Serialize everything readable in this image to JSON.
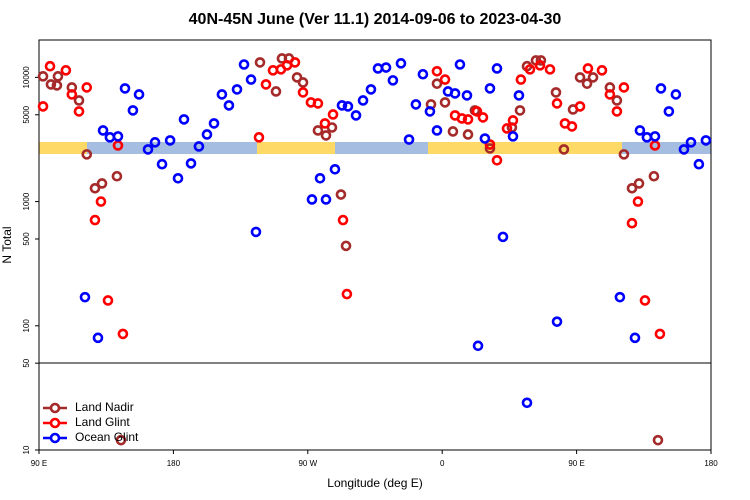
{
  "chart_data": {
    "type": "scatter",
    "title": "40N-45N June (Ver 11.1)   2014-09-06 to 2023-04-30",
    "x_label": "Longitude (deg E)",
    "y_label": "N Total",
    "xlim": [
      90,
      540
    ],
    "xticks": [
      {
        "value": 90,
        "label": "90 E"
      },
      180,
      {
        "value": 270,
        "label": "90 W"
      },
      {
        "value": 360,
        "label": "0"
      },
      {
        "value": 450,
        "label": "90 E"
      },
      {
        "value": 540,
        "label": "180"
      }
    ],
    "ylim": [
      10,
      20000
    ],
    "yscale": "log",
    "yticks": [
      10,
      50,
      100,
      500,
      1000,
      5000,
      10000
    ],
    "legend": "bottom-left",
    "series": [
      {
        "name": "Land Nadir",
        "color": "#a52a2a",
        "x": [
          92.7,
          98,
          102,
          102.7,
          112,
          116.8,
          122,
          127.5,
          132.2,
          142.2,
          144.9,
          238,
          248.7,
          252.7,
          257.4,
          262.8,
          266.8,
          276.8,
          282.2,
          286.2,
          292.2,
          295.6,
          352.5,
          356.5,
          361.9,
          367.2,
          377.3,
          381.9,
          392,
          406.7,
          412.1,
          416.8,
          422.8,
          426.1,
          436.2,
          441.5,
          447.6,
          452.3,
          457,
          461,
          472.3,
          477,
          481.7,
          487.1,
          491.8,
          501.8,
          504.5
        ],
        "values": [
          10200,
          8780,
          8620,
          10200,
          8300,
          6520,
          2400,
          1280,
          1400,
          1600,
          12,
          13200,
          7700,
          14200,
          14200,
          10000,
          9100,
          3740,
          3410,
          3950,
          1140,
          440,
          6060,
          8900,
          6290,
          3670,
          3470,
          5420,
          2680,
          3950,
          5420,
          12300,
          13700,
          13700,
          7570,
          2630,
          5520,
          10000,
          8900,
          10000,
          8300,
          6520,
          2400,
          1280,
          1400,
          1600,
          12
        ]
      },
      {
        "name": "Land Glint",
        "color": "#ff0000",
        "x": [
          92.7,
          97.4,
          108,
          112,
          116.8,
          122,
          127.5,
          131.5,
          136.2,
          142.9,
          146.2,
          237.3,
          242,
          246.7,
          252,
          256.1,
          261.4,
          266.8,
          272.1,
          276.8,
          281.5,
          286.9,
          293.6,
          296.2,
          356.5,
          361.9,
          368.6,
          373.2,
          377.3,
          383.3,
          387.3,
          392,
          396.7,
          403.4,
          407.4,
          412.7,
          418.8,
          425.5,
          432.2,
          436.9,
          442.2,
          446.9,
          452.3,
          457.6,
          467,
          472.3,
          477,
          481.7,
          487.1,
          491.1,
          495.8,
          502.5,
          505.8
        ],
        "values": [
          5840,
          12300,
          11400,
          7290,
          5320,
          8300,
          710,
          1000,
          160,
          2830,
          86,
          3290,
          8780,
          11400,
          11600,
          12500,
          13200,
          7570,
          6290,
          6170,
          4260,
          5030,
          710,
          180,
          11200,
          9600,
          4940,
          4670,
          4590,
          5320,
          4760,
          2880,
          2150,
          3880,
          4500,
          9600,
          11600,
          12500,
          11600,
          6170,
          4260,
          4030,
          5840,
          11800,
          11400,
          7290,
          5320,
          8300,
          670,
          1000,
          160,
          2830,
          86
        ]
      },
      {
        "name": "Ocean Glint",
        "color": "#0000ff",
        "x": [
          120.8,
          129.5,
          132.9,
          137.5,
          142.9,
          147.6,
          152.9,
          157,
          163,
          167.7,
          172.4,
          177.8,
          183.1,
          187.1,
          191.8,
          197.1,
          202.5,
          207.2,
          212.5,
          217.2,
          222.6,
          227.3,
          232,
          235.3,
          272.8,
          278.2,
          282.2,
          288.2,
          292.9,
          296.9,
          302.3,
          307,
          312.3,
          317,
          322.4,
          327,
          332.4,
          337.8,
          342.4,
          347.1,
          351.8,
          356.5,
          363.9,
          368.6,
          371.9,
          376.6,
          384,
          388.6,
          392,
          396.7,
          400.7,
          407.4,
          411.4,
          416.8,
          436.9,
          479,
          489.1,
          492.4,
          497.1,
          502.5,
          506.5,
          511.8,
          516.5,
          521.9,
          526.6,
          531.9,
          536.6
        ],
        "values": [
          170,
          80,
          3740,
          3290,
          3350,
          8150,
          5420,
          7290,
          2630,
          3000,
          2000,
          3110,
          1540,
          4590,
          2030,
          2780,
          3470,
          4260,
          7290,
          5950,
          8000,
          12700,
          9600,
          570,
          1040,
          1540,
          1040,
          1820,
          5950,
          5840,
          4940,
          6520,
          8000,
          11800,
          12000,
          9460,
          12970,
          3160,
          6060,
          10600,
          5320,
          3740,
          7700,
          7430,
          12700,
          7160,
          69,
          3220,
          8150,
          11800,
          520,
          3350,
          7160,
          24,
          108,
          170,
          80,
          3740,
          3290,
          3350,
          8150,
          5320,
          7290,
          2630,
          3000,
          2000,
          3110
        ]
      }
    ]
  }
}
